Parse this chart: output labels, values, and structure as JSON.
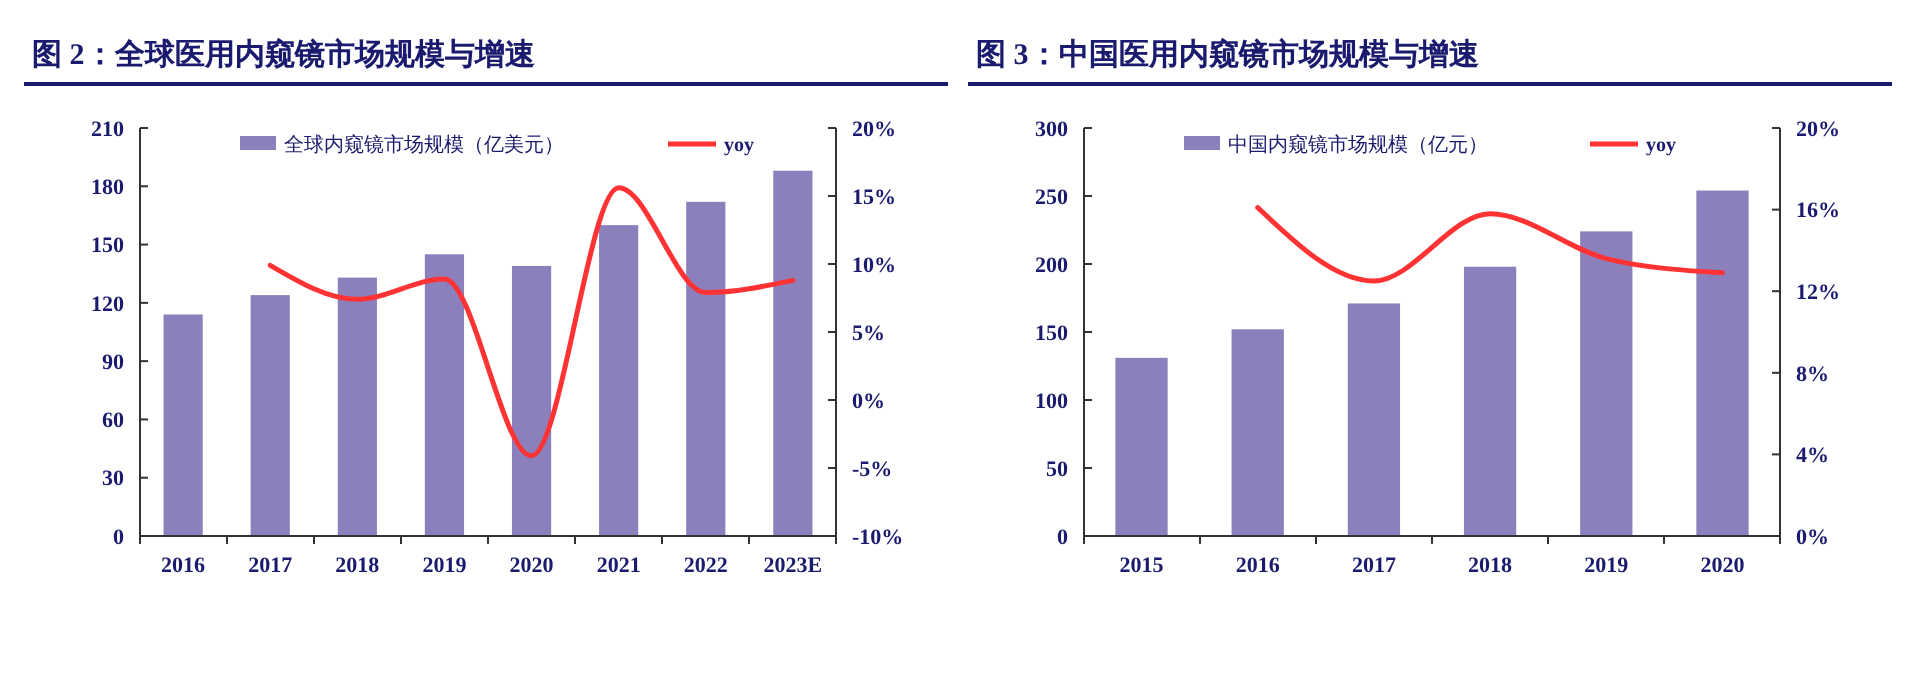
{
  "chart_data": [
    {
      "type": "bar",
      "title": "图 2：全球医用内窥镜市场规模与增速",
      "categories": [
        "2016",
        "2017",
        "2018",
        "2019",
        "2020",
        "2021",
        "2022",
        "2023E"
      ],
      "ylim": [
        0,
        210
      ],
      "yticks": [
        0,
        30,
        60,
        90,
        120,
        150,
        180,
        210
      ],
      "y2lim": [
        -10,
        20
      ],
      "y2ticks": [
        {
          "value": -10,
          "label": "-10%"
        },
        {
          "value": -5,
          "label": "-5%"
        },
        {
          "value": 0,
          "label": "0%"
        },
        {
          "value": 5,
          "label": "5%"
        },
        {
          "value": 10,
          "label": "10%"
        },
        {
          "value": 15,
          "label": "15%"
        },
        {
          "value": 20,
          "label": "20%"
        }
      ],
      "legend": "top",
      "grid": false,
      "series": [
        {
          "name": "全球内窥镜市场规模（亿美元）",
          "color": "#8b80bb",
          "values": [
            114,
            124,
            133,
            145,
            139,
            160,
            172,
            188
          ]
        },
        {
          "name": "yoy",
          "type": "line",
          "axis": "y2",
          "color": "#ff3333",
          "values": [
            null,
            9.9,
            7.4,
            8.9,
            -4.1,
            15.6,
            7.9,
            8.8
          ]
        }
      ]
    },
    {
      "type": "bar",
      "title": "图 3：中国医用内窥镜市场规模与增速",
      "categories": [
        "2015",
        "2016",
        "2017",
        "2018",
        "2019",
        "2020"
      ],
      "ylim": [
        0,
        300
      ],
      "yticks": [
        0,
        50,
        100,
        150,
        200,
        250,
        300
      ],
      "y2lim": [
        0,
        20
      ],
      "y2ticks": [
        {
          "value": 0,
          "label": "0%"
        },
        {
          "value": 4,
          "label": "4%"
        },
        {
          "value": 8,
          "label": "8%"
        },
        {
          "value": 12,
          "label": "12%"
        },
        {
          "value": 16,
          "label": "16%"
        },
        {
          "value": 20,
          "label": "20%"
        }
      ],
      "legend": "top",
      "grid": false,
      "series": [
        {
          "name": "中国内窥镜市场规模（亿元）",
          "color": "#8b80bb",
          "values": [
            131,
            152,
            171,
            198,
            224,
            254
          ]
        },
        {
          "name": "yoy",
          "type": "line",
          "axis": "y2",
          "color": "#ff3333",
          "values": [
            null,
            16.1,
            12.5,
            15.8,
            13.6,
            12.9
          ]
        }
      ]
    }
  ]
}
